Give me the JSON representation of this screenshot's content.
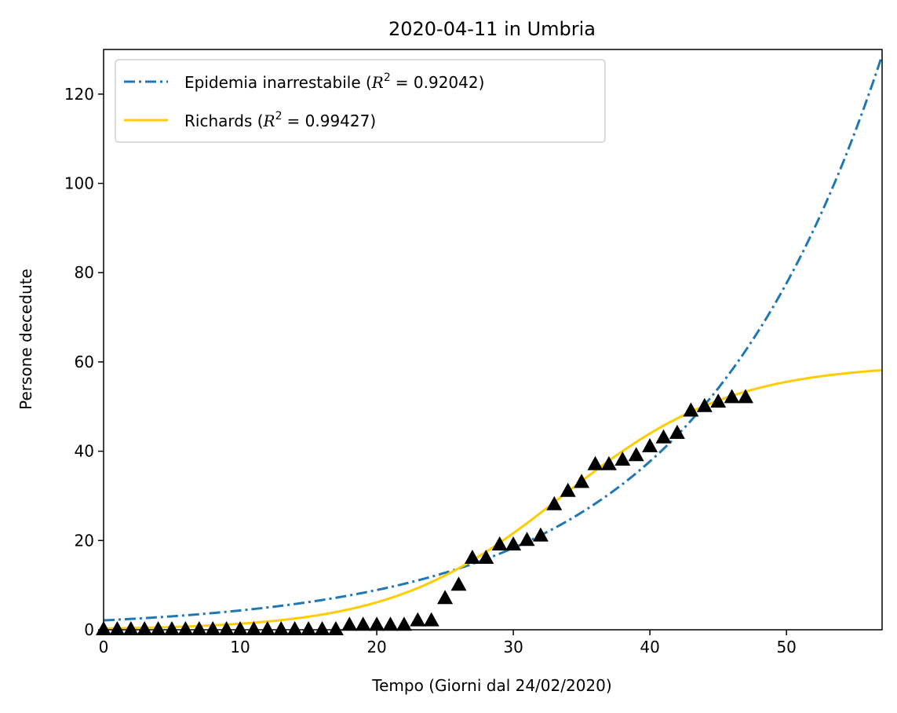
{
  "chart_data": {
    "type": "line",
    "title": "2020-04-11 in Umbria",
    "xlabel": "Tempo (Giorni dal 24/02/2020)",
    "ylabel": "Persone decedute",
    "xlim": [
      0,
      57
    ],
    "ylim": [
      0,
      130
    ],
    "xticks": [
      0,
      10,
      20,
      30,
      40,
      50
    ],
    "yticks": [
      0,
      20,
      40,
      60,
      80,
      100,
      120
    ],
    "grid": false,
    "legend_position": "top-left",
    "series": [
      {
        "name": "Epidemia inarrestabile",
        "r2_label": "R",
        "r2_value": "= 0.92042",
        "style": "dashdot",
        "color": "#1f77b4",
        "model": "exponential",
        "params": {
          "a": 2.1,
          "b": 0.0722
        }
      },
      {
        "name": "Richards",
        "r2_label": "R",
        "r2_value": "= 0.99427",
        "style": "solid",
        "color": "#ffcc00",
        "model": "richards",
        "params": {
          "K": 59.5,
          "r": 0.16,
          "t0": 33.5
        }
      }
    ],
    "observed": {
      "marker": "triangle",
      "color": "#000000",
      "x": [
        0,
        1,
        2,
        3,
        4,
        5,
        6,
        7,
        8,
        9,
        10,
        11,
        12,
        13,
        14,
        15,
        16,
        17,
        18,
        19,
        20,
        21,
        22,
        23,
        24,
        25,
        26,
        27,
        28,
        29,
        30,
        31,
        32,
        33,
        34,
        35,
        36,
        37,
        38,
        39,
        40,
        41,
        42,
        43,
        44,
        45,
        46,
        47
      ],
      "y": [
        0,
        0,
        0,
        0,
        0,
        0,
        0,
        0,
        0,
        0,
        0,
        0,
        0,
        0,
        0,
        0,
        0,
        0,
        1,
        1,
        1,
        1,
        1,
        2,
        2,
        7,
        10,
        16,
        16,
        19,
        19,
        20,
        21,
        28,
        31,
        33,
        37,
        37,
        38,
        39,
        41,
        43,
        44,
        49,
        50,
        51,
        52,
        52
      ]
    }
  }
}
